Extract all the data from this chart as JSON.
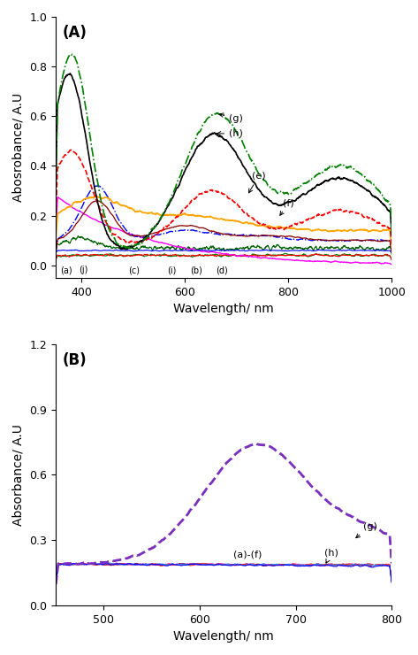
{
  "panel_A": {
    "title": "(A)",
    "xlabel": "Wavelength/ nm",
    "ylabel": "Abosrobance/ A.U",
    "xlim": [
      350,
      1000
    ],
    "ylim": [
      -0.05,
      1.0
    ],
    "yticks": [
      0.0,
      0.2,
      0.4,
      0.6,
      0.8,
      1.0
    ],
    "xticks": [
      400,
      600,
      800,
      1000
    ]
  },
  "panel_B": {
    "title": "(B)",
    "xlabel": "Wavelength/ nm",
    "ylabel": "Absorbance/ A.U",
    "xlim": [
      450,
      800
    ],
    "ylim": [
      0.0,
      1.2
    ],
    "yticks": [
      0.0,
      0.3,
      0.6,
      0.9,
      1.2
    ],
    "xticks": [
      500,
      600,
      700,
      800
    ]
  }
}
